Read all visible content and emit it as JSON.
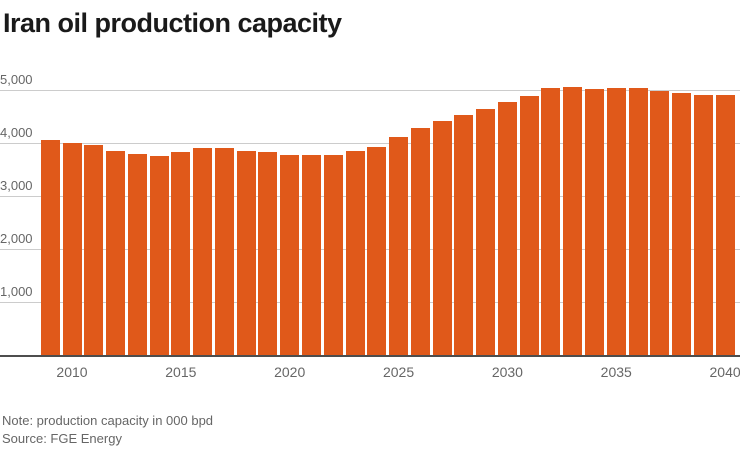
{
  "title": "Iran oil production capacity",
  "footer": {
    "note": "Note: production capacity in 000 bpd",
    "source": "Source: FGE Energy"
  },
  "colors": {
    "bar": "#e0591a",
    "grid": "#cccccc",
    "axis": "#4d4d4d",
    "muted_text": "#666666",
    "title_text": "#1a1a1a"
  },
  "chart_data": {
    "type": "bar",
    "title": "Iran oil production capacity",
    "unit": "000 bpd",
    "xlabel": "",
    "ylabel": "",
    "ylim": [
      0,
      5000
    ],
    "yticks": [
      1000,
      2000,
      3000,
      4000,
      5000
    ],
    "ytick_labels": [
      "1,000",
      "2,000",
      "3,000",
      "4,000",
      "5,000"
    ],
    "xticks": [
      2010,
      2015,
      2020,
      2025,
      2030,
      2035,
      2040
    ],
    "grid": "horizontal",
    "legend": "none",
    "x": [
      2009,
      2010,
      2011,
      2012,
      2013,
      2014,
      2015,
      2016,
      2017,
      2018,
      2019,
      2020,
      2021,
      2022,
      2023,
      2024,
      2025,
      2026,
      2027,
      2028,
      2029,
      2030,
      2031,
      2032,
      2033,
      2034,
      2035,
      2036,
      2037,
      2038,
      2039,
      2040
    ],
    "values": [
      4060,
      4000,
      3955,
      3850,
      3790,
      3760,
      3830,
      3910,
      3910,
      3855,
      3825,
      3775,
      3770,
      3770,
      3850,
      3920,
      4110,
      4280,
      4420,
      4530,
      4640,
      4770,
      4890,
      5030,
      5050,
      5010,
      5030,
      5030,
      4985,
      4950,
      4910,
      4900
    ]
  }
}
